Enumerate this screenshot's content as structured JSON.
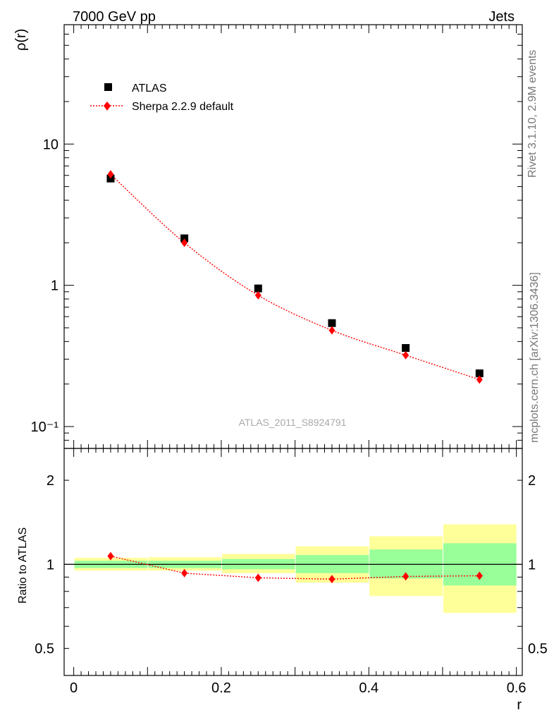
{
  "header": {
    "left": "7000 GeV pp",
    "right": "Jets"
  },
  "side_labels": {
    "rivet": "Rivet 3.1.10,  2.9M events",
    "mcplots": "mcplots.cern.ch [arXiv:1306.3436]"
  },
  "analysis_label": "ATLAS_2011_S8924791",
  "colors": {
    "data": "#000000",
    "mc": "#ff0000",
    "band_inner": "#99ff99",
    "band_outer": "#ffff99"
  },
  "chart_data": [
    {
      "type": "line",
      "ylabel": "ρ(r)",
      "yscale": "log",
      "ylim": [
        0.07,
        70
      ],
      "xlim": [
        -0.013,
        0.608
      ],
      "y_ticks": [
        {
          "value": 10,
          "label": "10"
        },
        {
          "value": 1,
          "label": "1"
        },
        {
          "value": 0.1,
          "label": "10⁻¹"
        }
      ],
      "legend": {
        "placement": "top-left"
      },
      "series": [
        {
          "name": "ATLAS",
          "marker": "square",
          "x": [
            0.05,
            0.15,
            0.25,
            0.35,
            0.45,
            0.55
          ],
          "y": [
            5.7,
            2.15,
            0.95,
            0.54,
            0.36,
            0.238
          ]
        },
        {
          "name": "Sherpa 2.2.9 default",
          "marker": "diamond",
          "line": "dotted",
          "x": [
            0.05,
            0.15,
            0.25,
            0.35,
            0.45,
            0.55
          ],
          "y": [
            6.1,
            2.0,
            0.85,
            0.48,
            0.32,
            0.215
          ]
        }
      ]
    },
    {
      "type": "line",
      "xlabel": "r",
      "ylabel": "Ratio to ATLAS",
      "yscale": "log",
      "ylim": [
        0.4,
        2.6
      ],
      "xlim": [
        -0.013,
        0.608
      ],
      "x_ticks": [
        {
          "value": 0,
          "label": "0"
        },
        {
          "value": 0.2,
          "label": "0.2"
        },
        {
          "value": 0.4,
          "label": "0.4"
        },
        {
          "value": 0.6,
          "label": "0.6"
        }
      ],
      "y_ticks": [
        {
          "value": 2,
          "label": "2"
        },
        {
          "value": 1,
          "label": "1"
        },
        {
          "value": 0.5,
          "label": "0.5"
        }
      ],
      "bands": [
        {
          "x0": 0.0,
          "x1": 0.1,
          "inner": [
            0.97,
            1.03
          ],
          "outer": [
            0.95,
            1.055
          ]
        },
        {
          "x0": 0.1,
          "x1": 0.2,
          "inner": [
            0.97,
            1.03
          ],
          "outer": [
            0.95,
            1.06
          ]
        },
        {
          "x0": 0.2,
          "x1": 0.3,
          "inner": [
            0.96,
            1.045
          ],
          "outer": [
            0.93,
            1.09
          ]
        },
        {
          "x0": 0.3,
          "x1": 0.4,
          "inner": [
            0.93,
            1.08
          ],
          "outer": [
            0.86,
            1.16
          ]
        },
        {
          "x0": 0.4,
          "x1": 0.5,
          "inner": [
            0.89,
            1.13
          ],
          "outer": [
            0.77,
            1.26
          ]
        },
        {
          "x0": 0.5,
          "x1": 0.6,
          "inner": [
            0.84,
            1.19
          ],
          "outer": [
            0.67,
            1.39
          ]
        }
      ],
      "series": [
        {
          "name": "Sherpa 2.2.9 default",
          "marker": "diamond",
          "line": "dotted",
          "x": [
            0.05,
            0.15,
            0.25,
            0.35,
            0.45,
            0.55
          ],
          "y": [
            1.07,
            0.93,
            0.895,
            0.885,
            0.905,
            0.91
          ]
        }
      ]
    }
  ]
}
